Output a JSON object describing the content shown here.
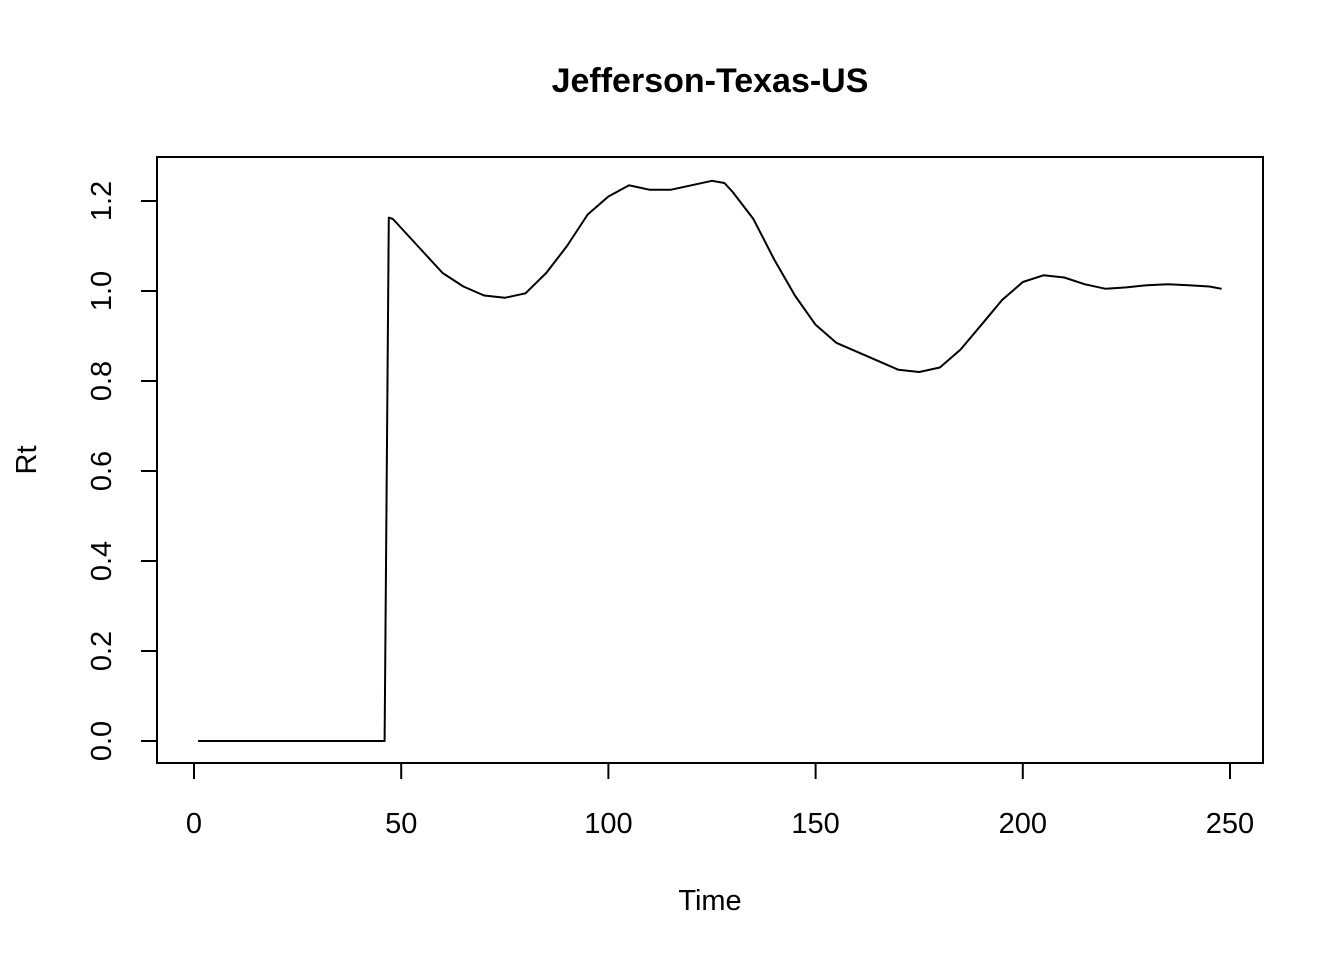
{
  "chart_data": {
    "type": "line",
    "title": "Jefferson-Texas-US",
    "xlabel": "Time",
    "ylabel": "Rt",
    "xlim": [
      1,
      248
    ],
    "ylim": [
      0,
      1.2
    ],
    "x_ticks": [
      0,
      50,
      100,
      150,
      200,
      250
    ],
    "y_ticks": [
      0.0,
      0.2,
      0.4,
      0.6,
      0.8,
      1.0,
      1.2
    ],
    "x_tick_labels": [
      "0",
      "50",
      "100",
      "150",
      "200",
      "250"
    ],
    "y_tick_labels": [
      "0.0",
      "0.2",
      "0.4",
      "0.6",
      "0.8",
      "1.0",
      "1.2"
    ],
    "grid": false,
    "legend": "none",
    "series": [
      {
        "color": "#000000",
        "x": [
          1,
          10,
          20,
          30,
          40,
          46,
          47,
          48,
          50,
          55,
          60,
          65,
          70,
          75,
          80,
          85,
          90,
          95,
          100,
          105,
          110,
          115,
          120,
          125,
          128,
          130,
          135,
          140,
          145,
          150,
          155,
          160,
          165,
          170,
          175,
          180,
          185,
          190,
          195,
          200,
          205,
          210,
          215,
          220,
          225,
          230,
          235,
          240,
          245,
          248
        ],
        "y": [
          0,
          0,
          0,
          0,
          0,
          0,
          1.163,
          1.16,
          1.14,
          1.09,
          1.04,
          1.01,
          0.99,
          0.985,
          0.995,
          1.04,
          1.1,
          1.17,
          1.21,
          1.235,
          1.225,
          1.225,
          1.235,
          1.245,
          1.24,
          1.22,
          1.16,
          1.07,
          0.99,
          0.925,
          0.885,
          0.865,
          0.845,
          0.825,
          0.82,
          0.83,
          0.87,
          0.925,
          0.98,
          1.02,
          1.035,
          1.03,
          1.015,
          1.005,
          1.008,
          1.013,
          1.015,
          1.013,
          1.01,
          1.005
        ]
      }
    ]
  }
}
